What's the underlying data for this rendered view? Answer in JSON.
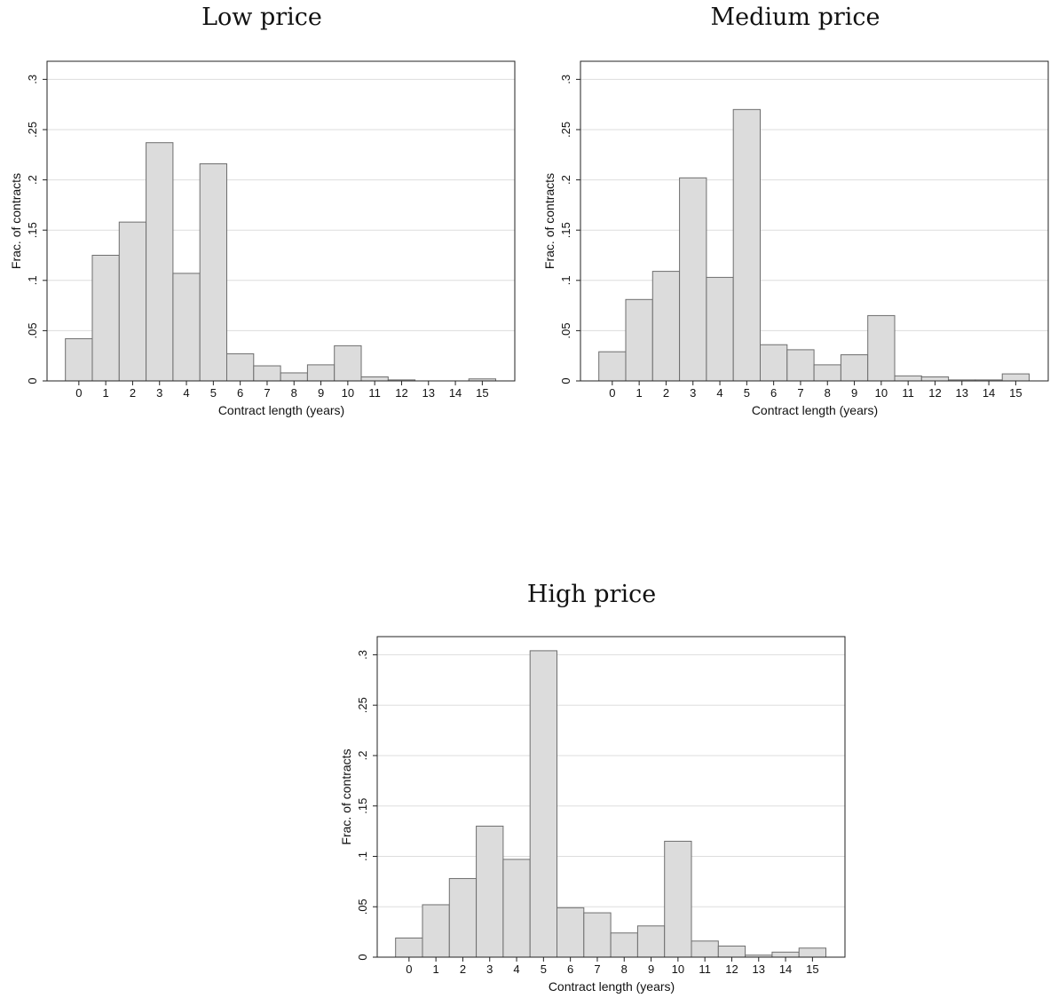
{
  "chart_data": [
    {
      "type": "bar",
      "title": "Low price",
      "xlabel": "Contract length (years)",
      "ylabel": "Frac. of contracts",
      "categories": [
        "0",
        "1",
        "2",
        "3",
        "4",
        "5",
        "6",
        "7",
        "8",
        "9",
        "10",
        "11",
        "12",
        "13",
        "14",
        "15"
      ],
      "values": [
        0.042,
        0.125,
        0.158,
        0.237,
        0.107,
        0.216,
        0.027,
        0.015,
        0.008,
        0.016,
        0.035,
        0.004,
        0.001,
        0.0,
        0.0,
        0.002
      ],
      "ylim": [
        0,
        0.3
      ],
      "yticks": [
        0,
        0.05,
        0.1,
        0.15,
        0.2,
        0.25,
        0.3
      ],
      "ytick_labels": [
        "0",
        ".05",
        ".1",
        ".15",
        ".2",
        ".25",
        ".3"
      ],
      "grid": true,
      "colors": {
        "bar_fill": "#dcdcdc",
        "bar_stroke": "#6e6e6e",
        "grid": "#dddddd"
      }
    },
    {
      "type": "bar",
      "title": "Medium price",
      "xlabel": "Contract length (years)",
      "ylabel": "Frac. of contracts",
      "categories": [
        "0",
        "1",
        "2",
        "3",
        "4",
        "5",
        "6",
        "7",
        "8",
        "9",
        "10",
        "11",
        "12",
        "13",
        "14",
        "15"
      ],
      "values": [
        0.029,
        0.081,
        0.109,
        0.202,
        0.103,
        0.27,
        0.036,
        0.031,
        0.016,
        0.026,
        0.065,
        0.005,
        0.004,
        0.001,
        0.001,
        0.007
      ],
      "ylim": [
        0,
        0.3
      ],
      "yticks": [
        0,
        0.05,
        0.1,
        0.15,
        0.2,
        0.25,
        0.3
      ],
      "ytick_labels": [
        "0",
        ".05",
        ".1",
        ".15",
        ".2",
        ".25",
        ".3"
      ],
      "grid": true,
      "colors": {
        "bar_fill": "#dcdcdc",
        "bar_stroke": "#6e6e6e",
        "grid": "#dddddd"
      }
    },
    {
      "type": "bar",
      "title": "High price",
      "xlabel": "Contract length (years)",
      "ylabel": "Frac. of contracts",
      "categories": [
        "0",
        "1",
        "2",
        "3",
        "4",
        "5",
        "6",
        "7",
        "8",
        "9",
        "10",
        "11",
        "12",
        "13",
        "14",
        "15"
      ],
      "values": [
        0.019,
        0.052,
        0.078,
        0.13,
        0.097,
        0.304,
        0.049,
        0.044,
        0.024,
        0.031,
        0.115,
        0.016,
        0.011,
        0.002,
        0.005,
        0.009
      ],
      "ylim": [
        0,
        0.3
      ],
      "yticks": [
        0,
        0.05,
        0.1,
        0.15,
        0.2,
        0.25,
        0.3
      ],
      "ytick_labels": [
        "0",
        ".05",
        ".1",
        ".15",
        ".2",
        ".25",
        ".3"
      ],
      "grid": true,
      "colors": {
        "bar_fill": "#dcdcdc",
        "bar_stroke": "#6e6e6e",
        "grid": "#dddddd"
      }
    }
  ]
}
